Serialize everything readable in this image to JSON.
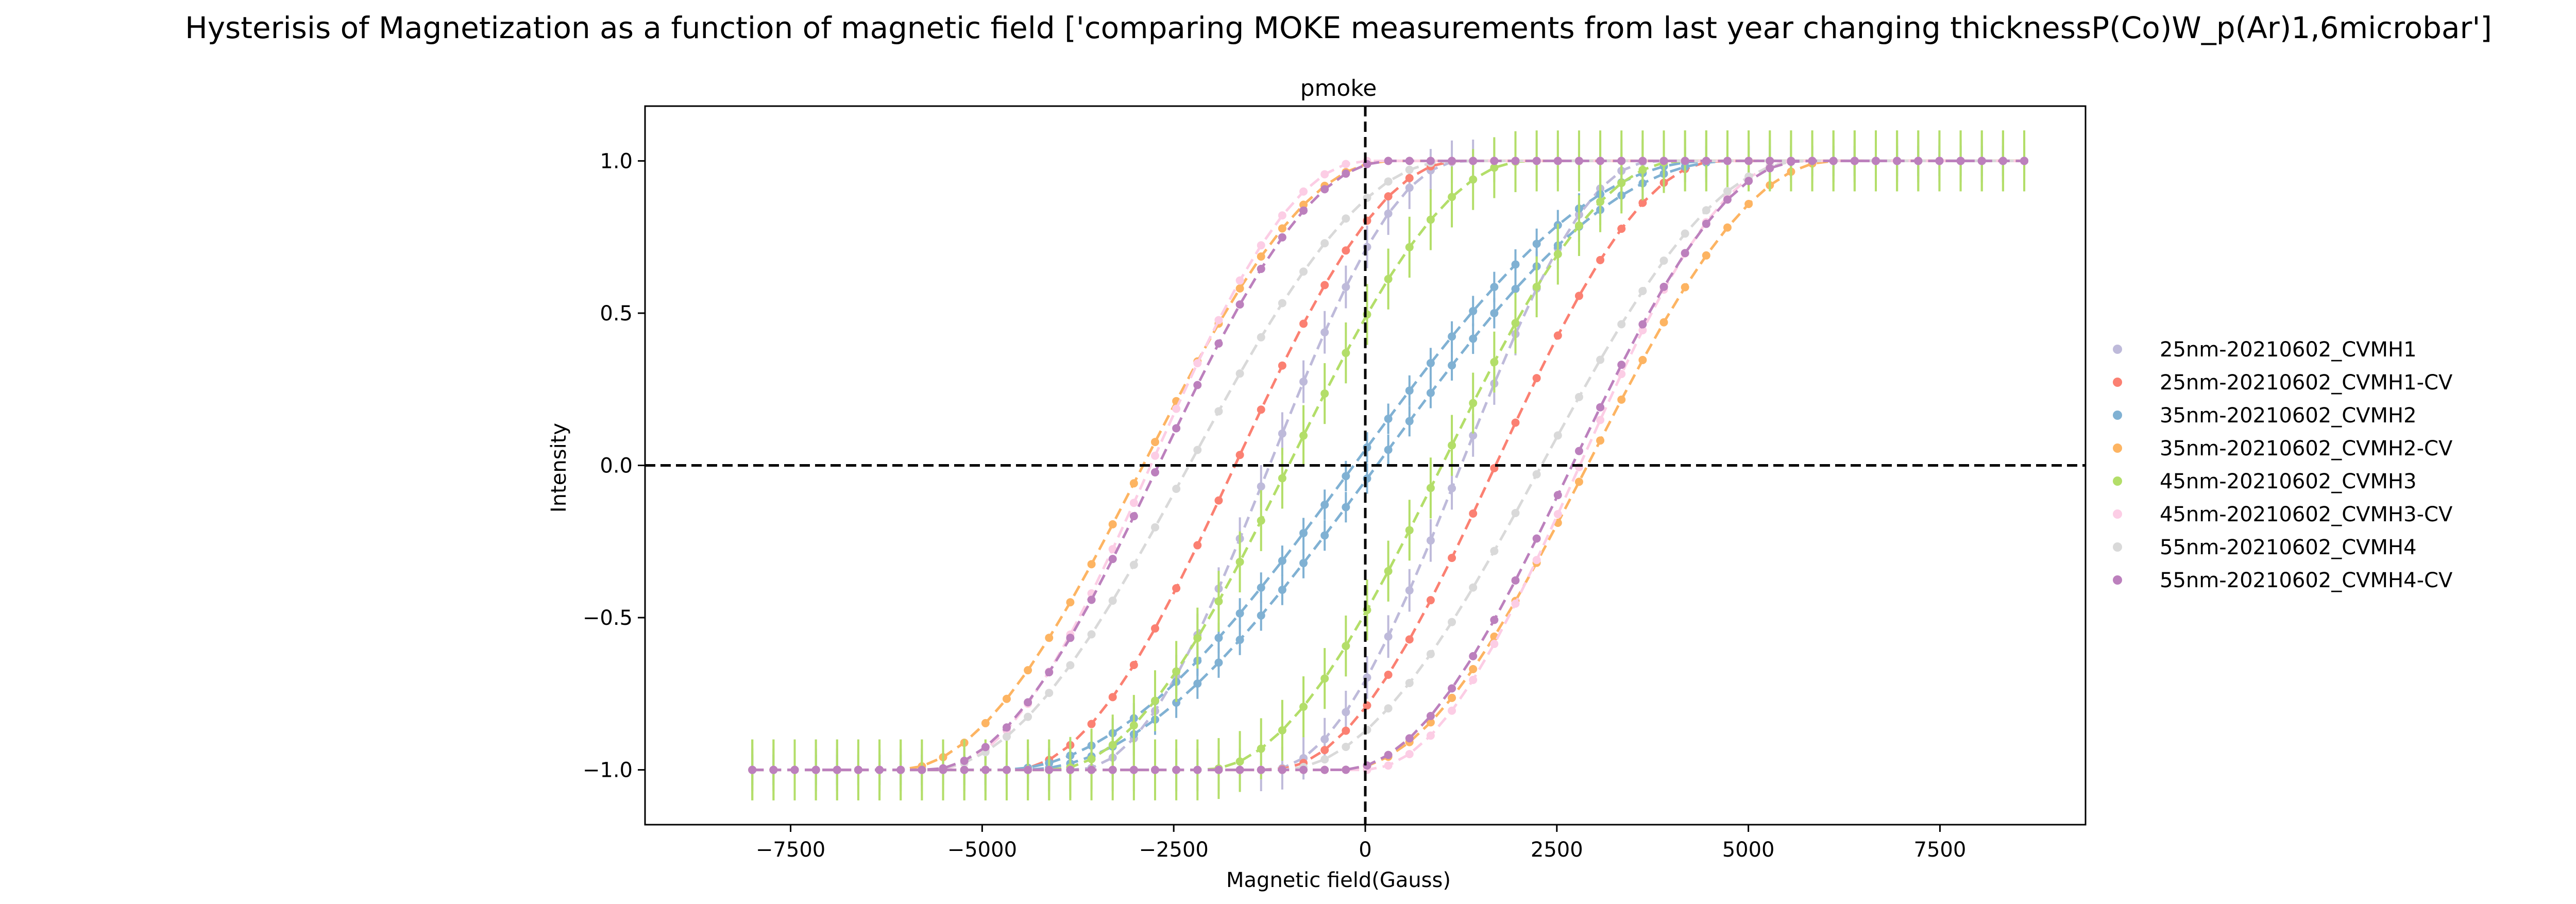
{
  "chart_data": {
    "type": "line",
    "suptitle": "Hysterisis of Magnetization as a function of magnetic field ['comparing MOKE measurements from last year changing thicknessP(Co)W_p(Ar)1,6microbar']",
    "title": "pmoke",
    "xlabel": "Magnetic field(Gauss)",
    "ylabel": "Intensity",
    "xlim": [
      -9400,
      9400
    ],
    "ylim": [
      -1.18,
      1.18
    ],
    "xticks": [
      -7500,
      -5000,
      -2500,
      0,
      2500,
      5000,
      7500
    ],
    "xtick_labels": [
      "−7500",
      "−5000",
      "−2500",
      "0",
      "2500",
      "5000",
      "7500"
    ],
    "yticks": [
      -1.0,
      -0.5,
      0.0,
      0.5,
      1.0
    ],
    "ytick_labels": [
      "−1.0",
      "−0.5",
      "0.0",
      "0.5",
      "1.0"
    ],
    "reference_lines": {
      "x": 0,
      "y": 0,
      "style": "dashed",
      "color": "#000000"
    },
    "grid": false,
    "legend_position": "right-outside",
    "x_range": [
      -8000,
      8600
    ],
    "series": [
      {
        "name": "25nm-20210602_CVMH1",
        "color": "#bebada",
        "coercive_field": 1250,
        "half_width": 2500,
        "error_bar": 0.07
      },
      {
        "name": "25nm-20210602_CVMH1-CV",
        "color": "#fb8072",
        "coercive_field": 1700,
        "half_width": 2900,
        "error_bar": 0.0
      },
      {
        "name": "35nm-20210602_CVMH2",
        "color": "#80b1d3",
        "coercive_field": 150,
        "half_width": 4600,
        "error_bar": 0.05
      },
      {
        "name": "35nm-20210602_CVMH2-CV",
        "color": "#fdb462",
        "coercive_field": 2900,
        "half_width": 3200,
        "error_bar": 0.0
      },
      {
        "name": "45nm-20210602_CVMH3",
        "color": "#b3de69",
        "coercive_field": 1000,
        "half_width": 3100,
        "error_bar": 0.1
      },
      {
        "name": "45nm-20210602_CVMH3-CV",
        "color": "#fccde5",
        "coercive_field": 2800,
        "half_width": 2800,
        "error_bar": 0.0
      },
      {
        "name": "55nm-20210602_CVMH4",
        "color": "#d9d9d9",
        "coercive_field": 2300,
        "half_width": 3400,
        "error_bar": 0.0
      },
      {
        "name": "55nm-20210602_CVMH4-CV",
        "color": "#bc80bd",
        "coercive_field": 2700,
        "half_width": 3000,
        "error_bar": 0.0
      }
    ]
  }
}
